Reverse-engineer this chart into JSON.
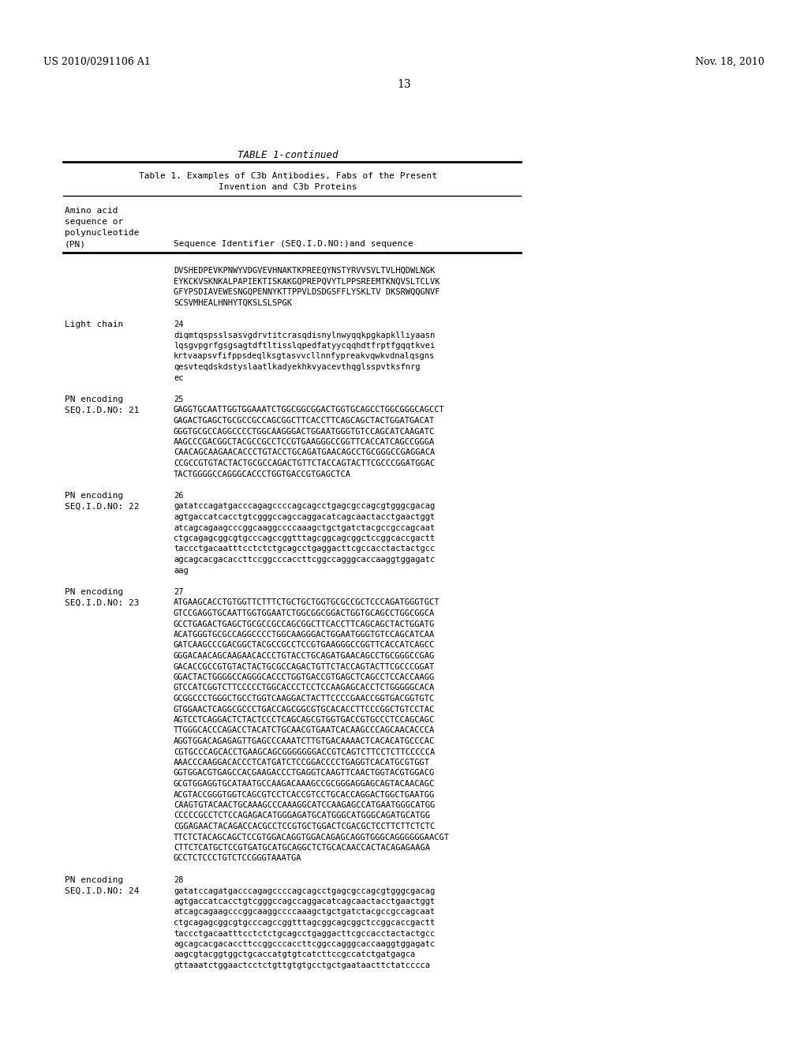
{
  "background_color": "#ffffff",
  "header_left": "US 2010/0291106 A1",
  "header_right": "Nov. 18, 2010",
  "page_number": "13",
  "table_title": "TABLE 1-continued",
  "table_subtitle1": "Table 1. Examples of C3b Antibodies, Fabs of the Present",
  "table_subtitle2": "Invention and C3b Proteins",
  "col1_header_lines": [
    "Amino acid",
    "sequence or",
    "polynucleotide",
    "(PN)"
  ],
  "col2_header": "Sequence Identifier (SEQ.I.D.NO:)and sequence",
  "seq1_lines": [
    "DVSHEDPEVKPNWYVDGVEVHNAKTKPREEQYNSTYRVVSVLTVLHQDWLNGK",
    "EYKCKVSKNKALPAPIEKTISKAKGQPREPQVYTLPPSREEMTKNQVSLTCLVK",
    "GFYPSDIAVEWESNGQPENNYKTTPPVLDSDGSFFLYSKLTV DKSRWQQGNVF",
    "SCSVMHEALHNHYTQKSLSLSPGK"
  ],
  "light_chain_label": "Light chain",
  "light_chain_num": "24",
  "seq2_lines": [
    "diqmtqspsslsasvgdrvtitcrasqdisnylnwyqqkpgkapklliyaasn",
    "lqsgvpgrfgsgsagtdftltisslqpedfatyycqqhdtfrptfgqqtkvei",
    "krtvaapsvfifppsdeqlksgtasvvcllnnfypreakvqwkvdnalqsgns",
    "qesvteqdskdstyslaatlkadyekhkvyacevthqglsspvtksfnrg",
    "ec"
  ],
  "pn21_label1": "PN encoding",
  "pn21_label2": "SEQ.I.D.NO: 21",
  "pn21_num": "25",
  "seq3_lines": [
    "GAGGTGCAATTGGTGGAAATCTGGCGGCGGACTGGTGCAGCCTGGCGGGCAGCCT",
    "GAGACTGAGCTGCGCCGCCAGCGGCTTCACCTTCAGCAGCTACTGGATGACAT",
    "GGGTGCGCCAGGCCCCTGGCAAGGGACTGGAATGGGTGTCCAGCATCAAGATC",
    "AAGCCCGACGGCTACGCCGCCTCCGTGAAGGGCCGGTTCACCATCAGCCGGGA",
    "CAACAGCAAGAACACCCTGTACCTGCAGATGAACAGCCTGCGGGCCGAGGACA",
    "CCGCCGTGTACTACTGCGCCAGACTGTTCTACCAGTACTTCGCCCGGATGGAC",
    "TACTGGGGCCAGGGCACCCTGGTGACCGTGAGCTCA"
  ],
  "pn22_label1": "PN encoding",
  "pn22_label2": "SEQ.I.D.NO: 22",
  "pn22_num": "26",
  "seq4_lines": [
    "gatatccagatgacccagagccccagcagcctgagcgccagcgtgggcgacag",
    "agtgaccatcacctgtcgggccagccaggacatcagcaactacctgaactggt",
    "atcagcagaagcccggcaaggccccaaagctgctgatctacgccgccagcaat",
    "ctgcagagcggcgtgcccagccggtttagcggcagcggctccggcaccgactt",
    "taccctgacaatttcctctctgcagcctgaggacttcgccacctactactgcc",
    "agcagcacgacaccttccggcccaccttcggccagggcaccaaggtggagatc",
    "aag"
  ],
  "pn23_label1": "PN encoding",
  "pn23_label2": "SEQ.I.D.NO: 23",
  "pn23_num": "27",
  "seq5_lines": [
    "ATGAAGCACCTGTGGTTCTTTCTGCTGCTGGTGCGCCGCTCCCAGATGGGTGCT",
    "GTCCGAGGTGCAATTGGTGGAATCTGGCGGCGGACTGGTGCAGCCTGGCGGCA",
    "GCCTGAGACTGAGCTGCGCCGCCAGCGGCTTCACCTTCAGCAGCTACTGGATG",
    "ACATGGGTGCGCCAGGCCCCTGGCAAGGGACTGGAATGGGTGTCCAGCATCAA",
    "GATCAAGCCCGACGGCTACGCCGCCTCCGTGAAGGGCCGGTTCACCATCAGCC",
    "GGGACAACAGCAAGAACACCCTGTACCTGCAGATGAACAGCCTGCGGGCCGAG",
    "GACACCGCCGTGTACTACTGCGCCAGACTGTTCTACCAGTACTTCGCCCGGAT",
    "GGACTACTGGGGCCAGGGCACCCTGGTGACCGTGAGCTCAGCCTCCACCAAGG",
    "GTCCATCGGTCTTCCCCCTGGCACCCTCCTCCAAGAGCACCTCTGGGGGCACA",
    "GCGGCCCTGGGCTGCCTGGTCAAGGACTACTTCCCCGAACCGGTGACGGTGTC",
    "GTGGAACTCAGGCGCCCTGACCAGCGGCGTGCACACCTTCCCGGCTGTCCTAC",
    "AGTCCTCAGGACTCTACTCCCTCAGCAGCGTGGTGACCGTGCCCTCCAGCAGC",
    "TTGGGCACCCAGACCTACATCTGCAACGTGAATCACAAGCCCAGCAACACCCA",
    "AGGTGGACAGAGAGTTGAGCCCAAATCTTGTGACAAAACTCACACATGCCCAC",
    "CGTGCCCAGCACCTGAAGCAGCGGGGGGGACCGTCAGTCTTCCTCTTCCCCCA",
    "AAACCCAAGGACACCCTCATGATCTCCGGACCCCTGAGGTCACATGCGTGGT",
    "GGTGGACGTGAGCCACGAAGACCCTGAGGTCAAGTTCAACTGGTACGTGGACG",
    "GCGTGGAGGTGCATAATGCCAAGACAAAGCCGCGGGAGGAGCAGTACAACAGC",
    "ACGTACCGGGTGGTCAGCGTCCTCACCGTCCTGCACCAGGACTGGCTGAATGG",
    "CAAGTGTACAACTGCAAAGCCCAAAGGCATCCAAGAGCCATGAATGGGCATGG",
    "CCCCCGCCTCTCCAGAGACATGGGAGATGCATGGGCATGGGCAGATGCATGG",
    "CGGAGAACTACAGACCACGCCTCCGTGCTGGACTCGACGCTCCTTCTTCTCTC",
    "TTCTCTACAGCAGCTCCGTGGACAGGTGGACAGAGCAGGTGGGCAGGGGGGAACGT",
    "CTTCTCATGCTCCGTGATGCATGCAGGCTCTGCACAACCACTACAGAGAAGA",
    "GCCTCTCCCTGTCTCCGGGTAAATGA"
  ],
  "pn24_label1": "PN encoding",
  "pn24_label2": "SEQ.I.D.NO: 24",
  "pn24_num": "28",
  "seq6_lines": [
    "gatatccagatgacccagagccccagcagcctgagcgccagcgtgggcgacag",
    "agtgaccatcacctgtcgggccagccaggacatcagcaactacctgaactggt",
    "atcagcagaagcccggcaaggccccaaagctgctgatctacgccgccagcaat",
    "ctgcagagcggcgtgcccagccggtttagcggcagcggctccggcaccgactt",
    "taccctgacaatttcctctctgcagcctgaggacttcgccacctactactgcc",
    "agcagcacgacaccttccggcccaccttcggccagggcaccaaggtggagatc",
    "aagcgtacggtggctgcaccatgtgtcatcttccgccatctgatgagca",
    "gttaaatctggaactcctctgttgtgtgcctgctgaataacttctatcccca"
  ]
}
